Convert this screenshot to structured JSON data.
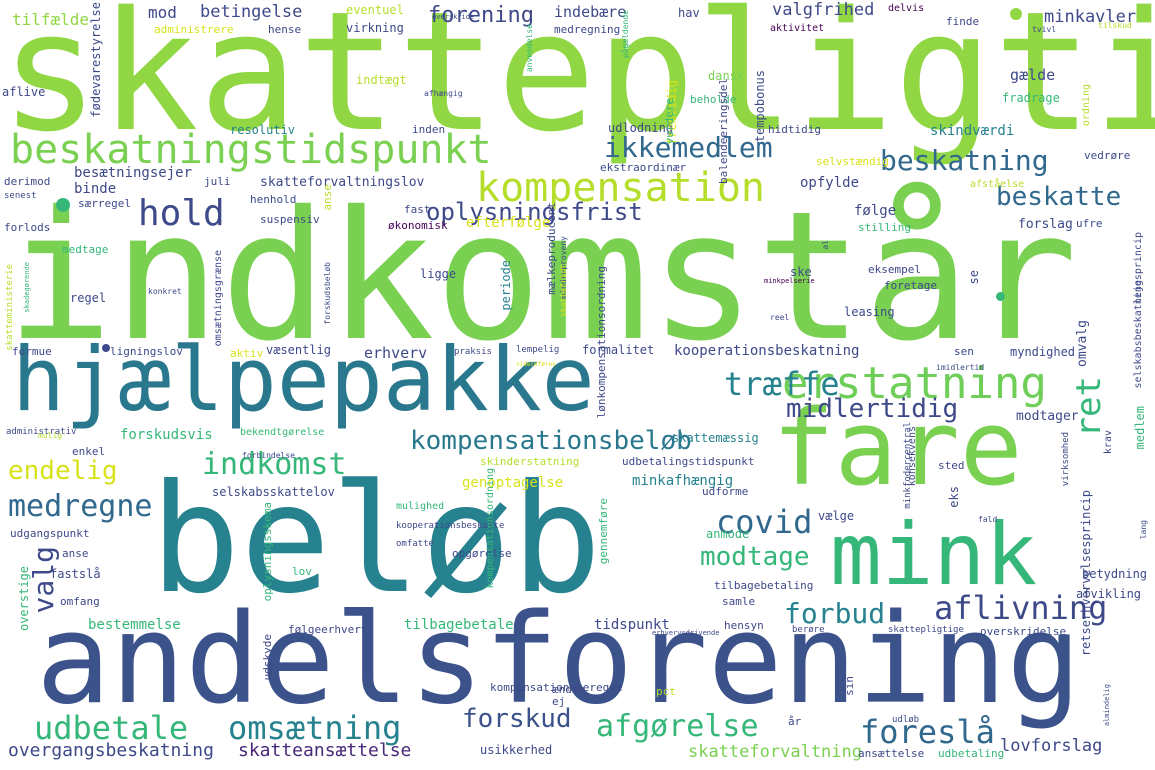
{
  "palette": {
    "purple_dark": "#440154",
    "purple": "#482878",
    "indigo": "#3e4989",
    "blue": "#31688e",
    "teal": "#26828e",
    "teal_green": "#1f9e89",
    "green": "#35b779",
    "light_green": "#6ece58",
    "lime": "#90d743",
    "lime_light": "#b5de2b",
    "yellow": "#d8e219",
    "yellow_bright": "#fde725"
  },
  "words": [
    {
      "text": "skattepligtig",
      "color": "#90d743"
    },
    {
      "text": "indkomstår",
      "color": "#7ad151"
    },
    {
      "text": "beløb",
      "color": "#26828e"
    },
    {
      "text": "andelsforening",
      "color": "#3b528b"
    },
    {
      "text": "hjælpepakke",
      "color": "#2a788e"
    },
    {
      "text": "fare",
      "color": "#7ad151"
    },
    {
      "text": "mink",
      "color": "#35b779"
    },
    {
      "text": "beskatningstidspunkt",
      "color": "#7ad151"
    },
    {
      "text": "kompensation",
      "color": "#b5de2b"
    },
    {
      "text": "erstatning",
      "color": "#6ece58"
    },
    {
      "text": "ikkemedlem",
      "color": "#31688e"
    },
    {
      "text": "hold",
      "color": "#3e4989"
    },
    {
      "text": "beskatning",
      "color": "#31688e"
    },
    {
      "text": "beskatte",
      "color": "#31688e"
    },
    {
      "text": "oplysningsfrist",
      "color": "#3e4989"
    },
    {
      "text": "træffe",
      "color": "#26828e"
    },
    {
      "text": "midlertidig",
      "color": "#3e4989"
    },
    {
      "text": "kompensationsbeløb",
      "color": "#2a788e"
    },
    {
      "text": "indkomst",
      "color": "#35b779"
    },
    {
      "text": "endelig",
      "color": "#d8e219"
    },
    {
      "text": "medregne",
      "color": "#31688e"
    },
    {
      "text": "ret",
      "color": "#35b779"
    },
    {
      "text": "covid",
      "color": "#31688e"
    },
    {
      "text": "valg",
      "color": "#3e4989"
    },
    {
      "text": "modtage",
      "color": "#35b779"
    },
    {
      "text": "forbud",
      "color": "#26828e"
    },
    {
      "text": "aflivning",
      "color": "#3e4989"
    },
    {
      "text": "udbetale",
      "color": "#35b779"
    },
    {
      "text": "omsætning",
      "color": "#26828e"
    },
    {
      "text": "forskud",
      "color": "#3b528b"
    },
    {
      "text": "afgørelse",
      "color": "#35b779"
    },
    {
      "text": "foreslå",
      "color": "#31688e"
    },
    {
      "text": "overgangsbeskatning",
      "color": "#3e4989"
    },
    {
      "text": "skatteansættelse",
      "color": "#482878"
    },
    {
      "text": "skatteforvaltning",
      "color": "#7ad151"
    },
    {
      "text": "lovforslag",
      "color": "#3e4989"
    },
    {
      "text": "forening",
      "color": "#3e4989"
    },
    {
      "text": "betingelse",
      "color": "#3e4989"
    },
    {
      "text": "valgfrihed",
      "color": "#3e4989"
    },
    {
      "text": "minkavler",
      "color": "#3e4989"
    },
    {
      "text": "mod",
      "color": "#3e4989"
    },
    {
      "text": "tilfælde",
      "color": "#90d743"
    },
    {
      "text": "indebære",
      "color": "#3e4989"
    },
    {
      "text": "hav",
      "color": "#3e4989"
    },
    {
      "text": "aktivitet",
      "color": "#440154"
    },
    {
      "text": "delvis",
      "color": "#440154"
    },
    {
      "text": "finde",
      "color": "#3e4989"
    },
    {
      "text": "eventuel",
      "color": "#b5de2b"
    },
    {
      "text": "administrere",
      "color": "#d8e219"
    },
    {
      "text": "virkning",
      "color": "#3e4989"
    },
    {
      "text": "medregning",
      "color": "#3e4989"
    },
    {
      "text": "hense",
      "color": "#3e4989"
    },
    {
      "text": "tvivl",
      "color": "#3e4989"
    },
    {
      "text": "tilskud",
      "color": "#b5de2b"
    },
    {
      "text": "indtægt",
      "color": "#b5de2b"
    },
    {
      "text": "dansk",
      "color": "#7ad151"
    },
    {
      "text": "gælde",
      "color": "#3e4989"
    },
    {
      "text": "aflive",
      "color": "#3e4989"
    },
    {
      "text": "fødevarestyrelse",
      "color": "#3e4989"
    },
    {
      "text": "afhængig",
      "color": "#3e4989"
    },
    {
      "text": "beholde",
      "color": "#35b779"
    },
    {
      "text": "fradrage",
      "color": "#35b779"
    },
    {
      "text": "resolutiv",
      "color": "#26828e"
    },
    {
      "text": "inden",
      "color": "#3e4989"
    },
    {
      "text": "udlodning",
      "color": "#3e4989"
    },
    {
      "text": "hidtidig",
      "color": "#3e4989"
    },
    {
      "text": "skindværdi",
      "color": "#26828e"
    },
    {
      "text": "ekstraordinær",
      "color": "#3e4989"
    },
    {
      "text": "selvstændig",
      "color": "#d8e219"
    },
    {
      "text": "vedrøre",
      "color": "#3e4989"
    },
    {
      "text": "besætningsejer",
      "color": "#3e4989"
    },
    {
      "text": "binde",
      "color": "#3e4989"
    },
    {
      "text": "juli",
      "color": "#3e4989"
    },
    {
      "text": "derimod",
      "color": "#3e4989"
    },
    {
      "text": "skatteforvaltningslov",
      "color": "#3e4989"
    },
    {
      "text": "opfylde",
      "color": "#3e4989"
    },
    {
      "text": "afståelse",
      "color": "#b5de2b"
    },
    {
      "text": "senest",
      "color": "#3e4989"
    },
    {
      "text": "særregel",
      "color": "#3e4989"
    },
    {
      "text": "henhold",
      "color": "#3e4989"
    },
    {
      "text": "fast",
      "color": "#3e4989"
    },
    {
      "text": "følge",
      "color": "#3e4989"
    },
    {
      "text": "forslag",
      "color": "#3e4989"
    },
    {
      "text": "ufre",
      "color": "#3e4989"
    },
    {
      "text": "forlods",
      "color": "#3e4989"
    },
    {
      "text": "suspensiv",
      "color": "#3e4989"
    },
    {
      "text": "økonomisk",
      "color": "#440154"
    },
    {
      "text": "efterfølge",
      "color": "#d8e219"
    },
    {
      "text": "stilling",
      "color": "#35b779"
    },
    {
      "text": "medtage",
      "color": "#35b779"
    },
    {
      "text": "ligge",
      "color": "#3e4989"
    },
    {
      "text": "periode",
      "color": "#26828e"
    },
    {
      "text": "ske",
      "color": "#3e4989"
    },
    {
      "text": "eksempel",
      "color": "#3e4989"
    },
    {
      "text": "foretage",
      "color": "#3e4989"
    },
    {
      "text": "regel",
      "color": "#3e4989"
    },
    {
      "text": "konkret",
      "color": "#3e4989"
    },
    {
      "text": "leasing",
      "color": "#3e4989"
    },
    {
      "text": "reel",
      "color": "#3e4989"
    },
    {
      "text": "omvalg",
      "color": "#3e4989"
    },
    {
      "text": "formue",
      "color": "#3e4989"
    },
    {
      "text": "ligningslov",
      "color": "#3e4989"
    },
    {
      "text": "aktiv",
      "color": "#d8e219"
    },
    {
      "text": "væsentlig",
      "color": "#3e4989"
    },
    {
      "text": "praksis",
      "color": "#3e4989"
    },
    {
      "text": "lempelig",
      "color": "#3e4989"
    },
    {
      "text": "formalitet",
      "color": "#3e4989"
    },
    {
      "text": "kooperationsbeskatning",
      "color": "#3e4989"
    },
    {
      "text": "sen",
      "color": "#3e4989"
    },
    {
      "text": "myndighed",
      "color": "#3e4989"
    },
    {
      "text": "erhverv",
      "color": "#3e4989"
    },
    {
      "text": "modtager",
      "color": "#3e4989"
    },
    {
      "text": "skattemæssig",
      "color": "#26828e"
    },
    {
      "text": "mulig",
      "color": "#b5de2b"
    },
    {
      "text": "forskudsvis",
      "color": "#35b779"
    },
    {
      "text": "bekendtgørelse",
      "color": "#35b779"
    },
    {
      "text": "minkfodercentral",
      "color": "#3e4989"
    },
    {
      "text": "krav",
      "color": "#3e4989"
    },
    {
      "text": "enkel",
      "color": "#3e4989"
    },
    {
      "text": "forbindelse",
      "color": "#3e4989"
    },
    {
      "text": "skinderstatning",
      "color": "#b5de2b"
    },
    {
      "text": "udbetalingstidspunkt",
      "color": "#3e4989"
    },
    {
      "text": "sted",
      "color": "#3e4989"
    },
    {
      "text": "genoptagelse",
      "color": "#d8e219"
    },
    {
      "text": "minkafhængig",
      "color": "#26828e"
    },
    {
      "text": "eks",
      "color": "#3e4989"
    },
    {
      "text": "fald",
      "color": "#3e4989"
    },
    {
      "text": "udforme",
      "color": "#3e4989"
    },
    {
      "text": "selskabsskattelov",
      "color": "#3e4989"
    },
    {
      "text": "vælge",
      "color": "#3e4989"
    },
    {
      "text": "mulighed",
      "color": "#35b779"
    },
    {
      "text": "anmode",
      "color": "#35b779"
    },
    {
      "text": "udgangspunkt",
      "color": "#3e4989"
    },
    {
      "text": "kooperationsbeskatte",
      "color": "#3e4989"
    },
    {
      "text": "betydning",
      "color": "#3e4989"
    },
    {
      "text": "anse",
      "color": "#3e4989"
    },
    {
      "text": "omfatte",
      "color": "#3e4989"
    },
    {
      "text": "afvikling",
      "color": "#3e4989"
    },
    {
      "text": "fastslå",
      "color": "#3e4989"
    },
    {
      "text": "opgørelse",
      "color": "#3e4989"
    },
    {
      "text": "lov",
      "color": "#35b779"
    },
    {
      "text": "tilbagebetaling",
      "color": "#3e4989"
    },
    {
      "text": "samle",
      "color": "#3e4989"
    },
    {
      "text": "omfang",
      "color": "#3e4989"
    },
    {
      "text": "bestemmelse",
      "color": "#35b779"
    },
    {
      "text": "tilbagebetale",
      "color": "#35b779"
    },
    {
      "text": "tidspunkt",
      "color": "#3e4989"
    },
    {
      "text": "følgeerhverv",
      "color": "#3e4989"
    },
    {
      "text": "hensyn",
      "color": "#3e4989"
    },
    {
      "text": "berøre",
      "color": "#3e4989"
    },
    {
      "text": "skattepligtige",
      "color": "#3e4989"
    },
    {
      "text": "overskridelse",
      "color": "#3e4989"
    },
    {
      "text": "erhvervsdrivende",
      "color": "#3e4989"
    },
    {
      "text": "kompensationsberegne",
      "color": "#3e4989"
    },
    {
      "text": "pct",
      "color": "#b5de2b"
    },
    {
      "text": "ændre",
      "color": "#3e4989"
    },
    {
      "text": "ej",
      "color": "#3e4989"
    },
    {
      "text": "sin",
      "color": "#3e4989"
    },
    {
      "text": "år",
      "color": "#3e4989"
    },
    {
      "text": "udløb",
      "color": "#3e4989"
    },
    {
      "text": "usikkerhed",
      "color": "#3e4989"
    },
    {
      "text": "ansættelse",
      "color": "#3e4989"
    },
    {
      "text": "udbetaling",
      "color": "#35b779"
    },
    {
      "text": "overskride",
      "color": "#3e4989"
    },
    {
      "text": "imidlertid",
      "color": "#3e4989"
    },
    {
      "text": "minkpelserie",
      "color": "#440154"
    },
    {
      "text": "videreføres",
      "color": "#d8e219"
    },
    {
      "text": "fremtidig",
      "color": "#d8e219"
    },
    {
      "text": "balendeeringsdel",
      "color": "#3e4989"
    },
    {
      "text": "ordning",
      "color": "#b5de2b"
    },
    {
      "text": "tempobonus",
      "color": "#3e4989"
    },
    {
      "text": "vurdere",
      "color": "#35b779"
    },
    {
      "text": "pågældende",
      "color": "#35b779"
    },
    {
      "text": "anvendelse",
      "color": "#35b779"
    },
    {
      "text": "anse",
      "color": "#b5de2b"
    },
    {
      "text": "omsætningsgrænse",
      "color": "#3e4989"
    },
    {
      "text": "forskudsbeløb",
      "color": "#3e4989"
    },
    {
      "text": "mælkeproducent",
      "color": "#3e4989"
    },
    {
      "text": "lønkompensationsordning",
      "color": "#3e4989"
    },
    {
      "text": "mindreproveny",
      "color": "#3e4989"
    },
    {
      "text": "al",
      "color": "#3e4989"
    },
    {
      "text": "skattefridt",
      "color": "#d8e219"
    },
    {
      "text": "skatteministerie",
      "color": "#b5de2b"
    },
    {
      "text": "skadegørende",
      "color": "#35b779"
    },
    {
      "text": "leje",
      "color": "#3e4989"
    },
    {
      "text": "selskabsbeskatningsprincip",
      "color": "#3e4989"
    },
    {
      "text": "medlem",
      "color": "#35b779"
    },
    {
      "text": "retserhvervelsesprincip",
      "color": "#3e4989"
    },
    {
      "text": "konsekvens",
      "color": "#3e4989"
    },
    {
      "text": "virksomhed",
      "color": "#3e4989"
    },
    {
      "text": "gennemføre",
      "color": "#35b779"
    },
    {
      "text": "oplysningsskema",
      "color": "#35b779"
    },
    {
      "text": "kompensationsordning",
      "color": "#35b779"
    },
    {
      "text": "udskyde",
      "color": "#3e4989"
    },
    {
      "text": "overstige",
      "color": "#35b779"
    },
    {
      "text": "administrativ",
      "color": "#3e4989"
    },
    {
      "text": "se",
      "color": "#3e4989"
    },
    {
      "text": "almindelig",
      "color": "#3e4989"
    },
    {
      "text": "lang",
      "color": "#3e4989"
    },
    {
      "text": "stor",
      "color": "#b5de2b"
    }
  ]
}
